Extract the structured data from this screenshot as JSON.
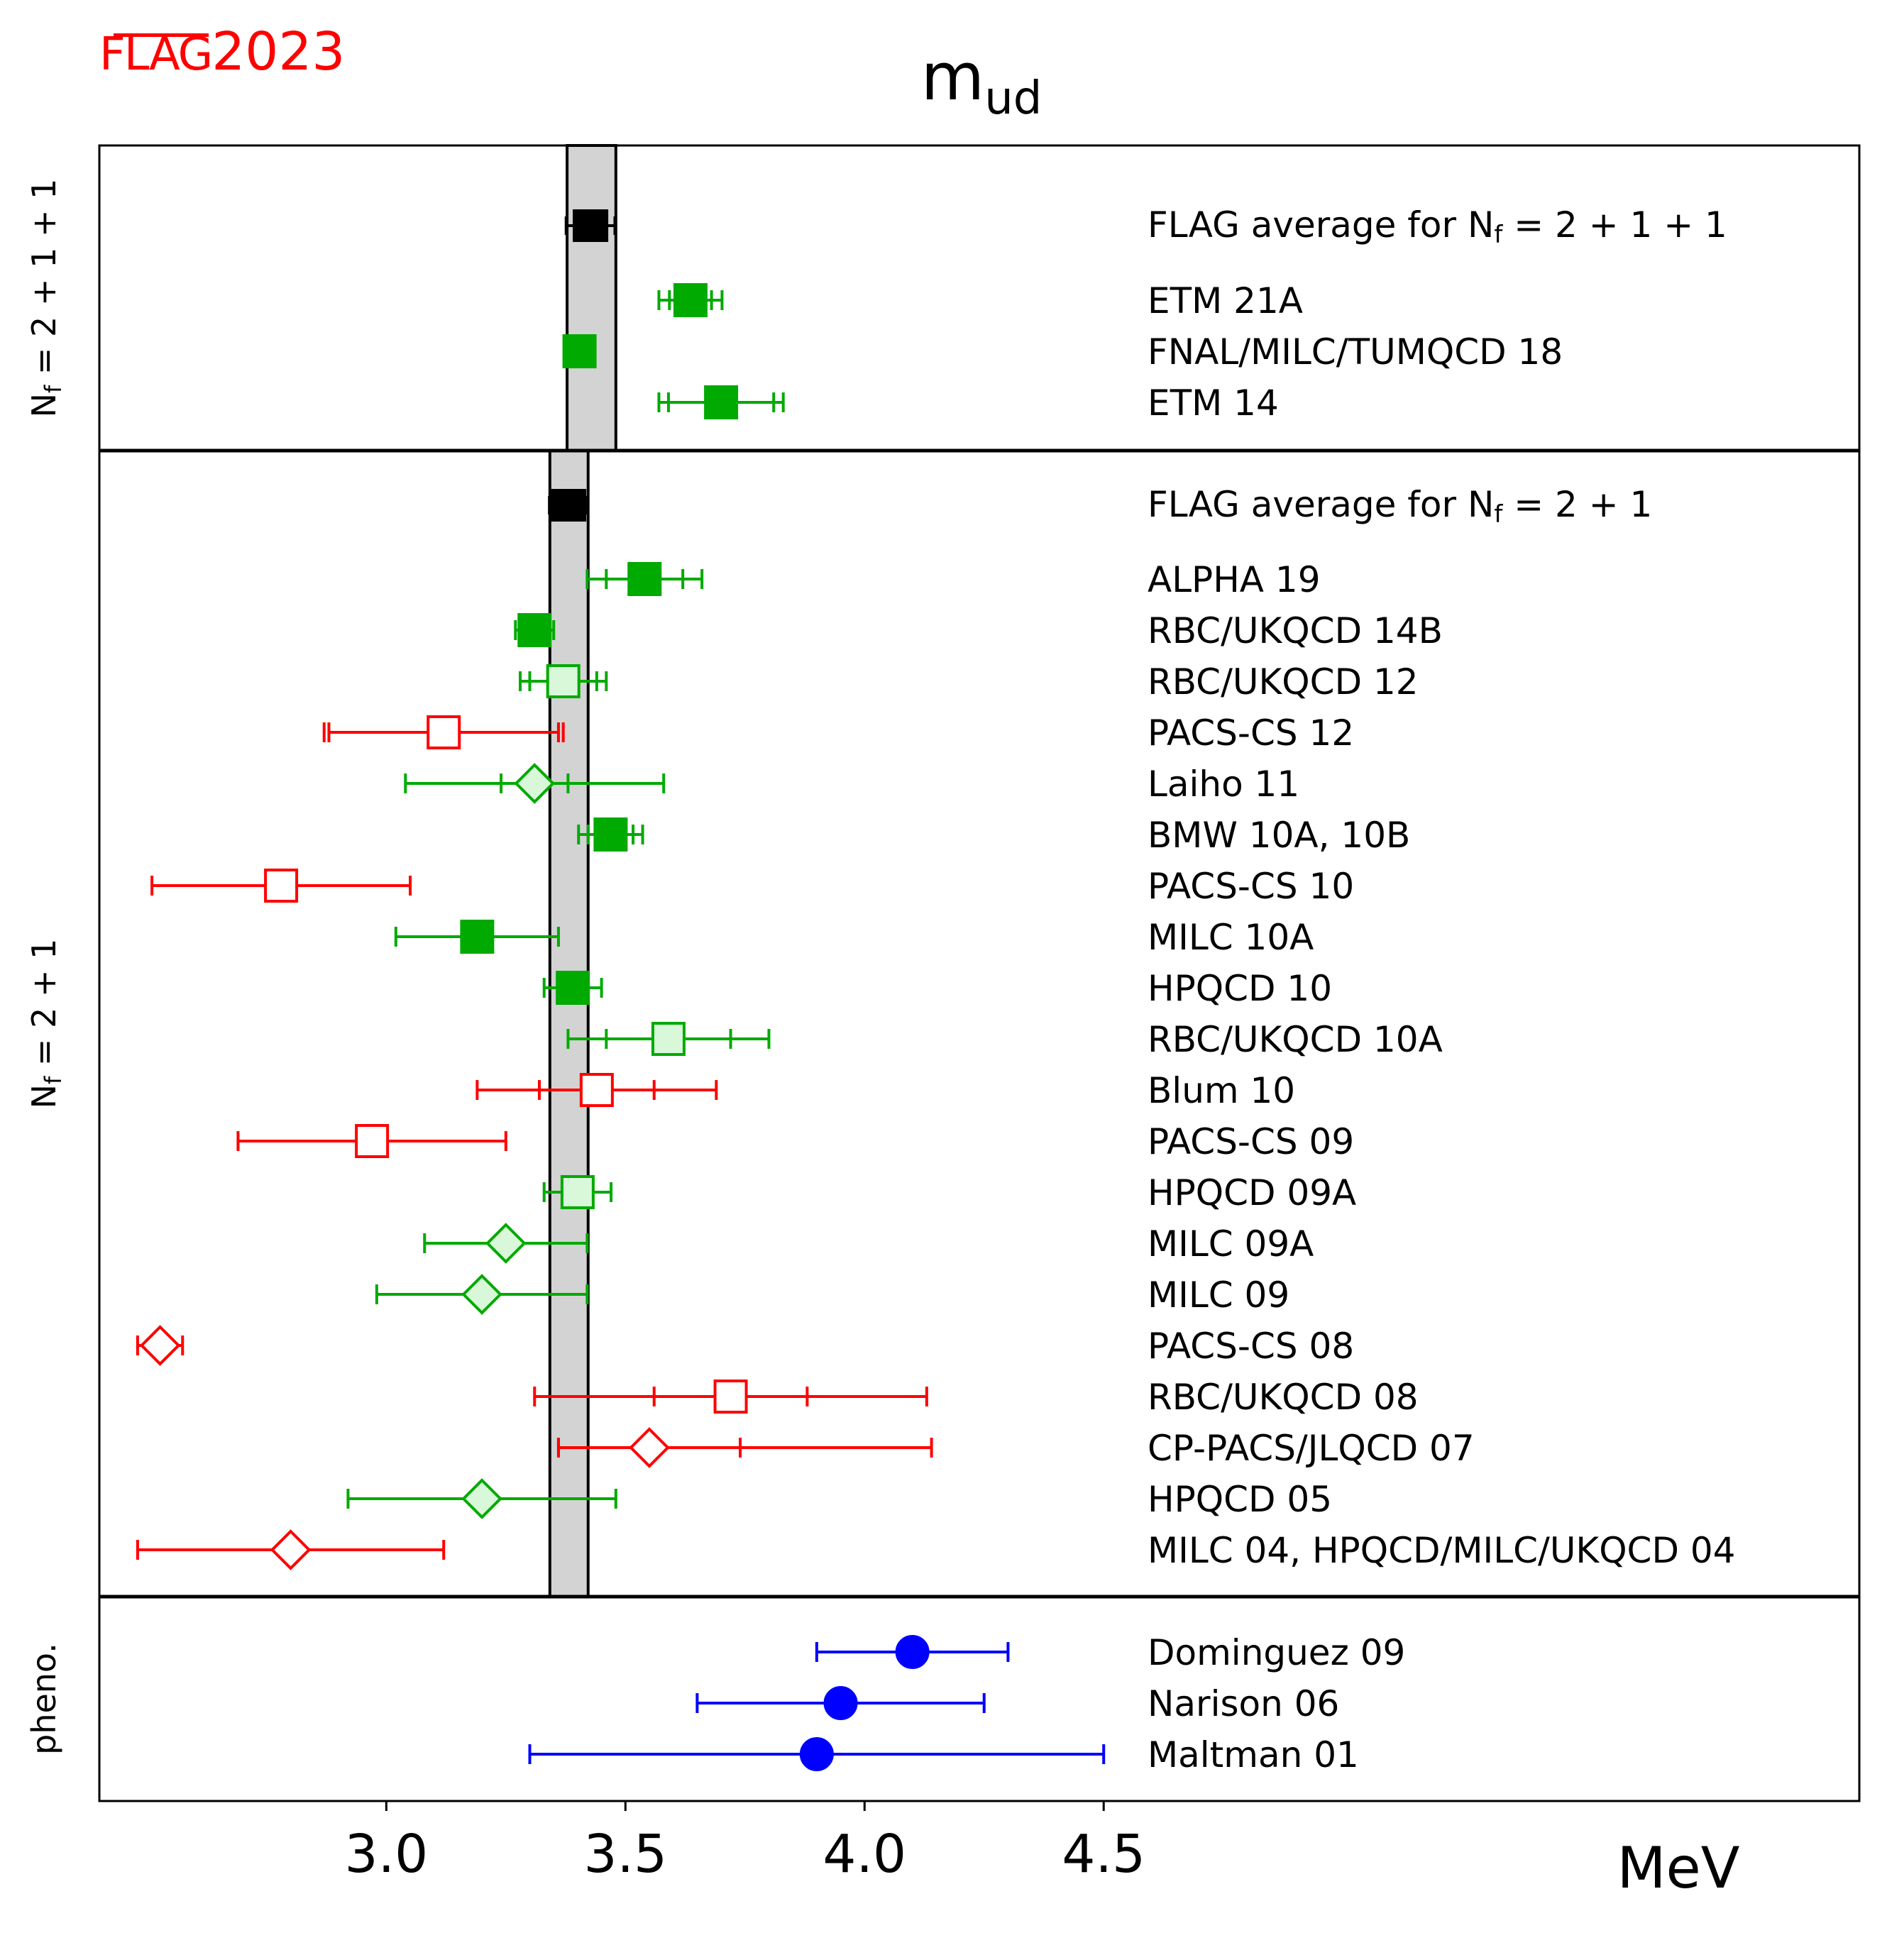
{
  "logo": {
    "word": "FLAG",
    "year": "2023",
    "color": "#ff0000"
  },
  "chart_data": {
    "type": "forest",
    "title_main": "m",
    "title_sub": "ud",
    "xlabel": "MeV",
    "xlim": [
      2.4,
      6.08
    ],
    "xticks": [
      "3.0",
      "3.5",
      "4.0",
      "4.5"
    ],
    "xtick_values": [
      3.0,
      3.5,
      4.0,
      4.5
    ],
    "colors": {
      "black": "#000000",
      "green": "#00aa00",
      "light_green": "#d9f7d9",
      "red": "#ff0000",
      "blue": "#0000ff",
      "band": "#d3d3d3"
    },
    "panels": [
      {
        "label": "N",
        "label_sub": "f",
        "label_rest": " = 2 + 1 + 1",
        "band": [
          3.378,
          3.48
        ],
        "average": {
          "label": "FLAG average for N",
          "label_sub": "f",
          "label_rest": " = 2 + 1 + 1",
          "value": 3.427,
          "err": [
            0.051,
            0.051
          ]
        },
        "points": [
          {
            "label": "ETM 21A",
            "value": 3.636,
            "err_total": [
              0.066,
              0.066
            ],
            "err_stat": [
              0.044,
              0.044
            ],
            "marker": "square",
            "color": "green",
            "fill": "filled"
          },
          {
            "label": "FNAL/MILC/TUMQCD 18",
            "value": 3.404,
            "err_total": [
              0.0,
              0.0
            ],
            "err_stat": [
              0.0,
              0.0
            ],
            "marker": "square",
            "color": "green",
            "fill": "filled"
          },
          {
            "label": "ETM 14",
            "value": 3.7,
            "err_total": [
              0.13,
              0.13
            ],
            "err_stat": [
              0.11,
              0.11
            ],
            "marker": "square",
            "color": "green",
            "fill": "filled"
          }
        ]
      },
      {
        "label": "N",
        "label_sub": "f",
        "label_rest": " = 2 + 1",
        "band": [
          3.342,
          3.422
        ],
        "average": {
          "label": "FLAG average for N",
          "label_sub": "f",
          "label_rest": " = 2 + 1",
          "value": 3.381,
          "err": [
            0.04,
            0.04
          ]
        },
        "points": [
          {
            "label": "ALPHA 19",
            "value": 3.54,
            "err_total": [
              0.12,
              0.12
            ],
            "err_stat": [
              0.08,
              0.08
            ],
            "marker": "square",
            "color": "green",
            "fill": "filled"
          },
          {
            "label": "RBC/UKQCD 14B",
            "value": 3.31,
            "err_total": [
              0.04,
              0.04
            ],
            "err_stat": [
              0.04,
              0.04
            ],
            "marker": "square",
            "color": "green",
            "fill": "filled"
          },
          {
            "label": "RBC/UKQCD 12",
            "value": 3.37,
            "err_total": [
              0.09,
              0.09
            ],
            "err_stat": [
              0.07,
              0.07
            ],
            "marker": "square",
            "color": "green",
            "fill": "light"
          },
          {
            "label": "PACS-CS 12",
            "value": 3.12,
            "err_total": [
              0.24,
              0.24
            ],
            "err_stat": [
              0.25,
              0.25
            ],
            "marker": "square",
            "color": "red",
            "fill": "open"
          },
          {
            "label": "Laiho 11",
            "value": 3.31,
            "err_total": [
              0.27,
              0.27
            ],
            "err_stat": [
              0.07,
              0.07
            ],
            "marker": "diamond",
            "color": "green",
            "fill": "light"
          },
          {
            "label": "BMW 10A, 10B",
            "value": 3.469,
            "err_total": [
              0.067,
              0.067
            ],
            "err_stat": [
              0.047,
              0.047
            ],
            "marker": "square",
            "color": "green",
            "fill": "filled"
          },
          {
            "label": "PACS-CS 10",
            "value": 2.78,
            "err_total": [
              0.27,
              0.27
            ],
            "err_stat": [
              0.27,
              0.27
            ],
            "marker": "square",
            "color": "red",
            "fill": "open"
          },
          {
            "label": "MILC 10A",
            "value": 3.19,
            "err_total": [
              0.17,
              0.17
            ],
            "err_stat": [
              0.0,
              0.0
            ],
            "marker": "square",
            "color": "green",
            "fill": "filled"
          },
          {
            "label": "HPQCD 10",
            "value": 3.39,
            "err_total": [
              0.06,
              0.06
            ],
            "err_stat": [
              0.06,
              0.06
            ],
            "marker": "square",
            "color": "green",
            "fill": "filled"
          },
          {
            "label": "RBC/UKQCD 10A",
            "value": 3.59,
            "err_total": [
              0.21,
              0.21
            ],
            "err_stat": [
              0.13,
              0.13
            ],
            "marker": "square",
            "color": "green",
            "fill": "light"
          },
          {
            "label": "Blum 10",
            "value": 3.44,
            "err_total": [
              0.25,
              0.25
            ],
            "err_stat": [
              0.12,
              0.12
            ],
            "marker": "square",
            "color": "red",
            "fill": "open"
          },
          {
            "label": "PACS-CS 09",
            "value": 2.97,
            "err_total": [
              0.28,
              0.28
            ],
            "err_stat": [
              0.28,
              0.28
            ],
            "marker": "square",
            "color": "red",
            "fill": "open"
          },
          {
            "label": "HPQCD 09A",
            "value": 3.4,
            "err_total": [
              0.07,
              0.07
            ],
            "err_stat": [
              0.07,
              0.07
            ],
            "marker": "square",
            "color": "green",
            "fill": "light"
          },
          {
            "label": "MILC 09A",
            "value": 3.25,
            "err_total": [
              0.17,
              0.17
            ],
            "err_stat": [
              0.17,
              0.17
            ],
            "marker": "diamond",
            "color": "green",
            "fill": "light"
          },
          {
            "label": "MILC 09",
            "value": 3.2,
            "err_total": [
              0.22,
              0.22
            ],
            "err_stat": [
              0.22,
              0.22
            ],
            "marker": "diamond",
            "color": "green",
            "fill": "light"
          },
          {
            "label": "PACS-CS 08",
            "value": 2.527,
            "err_total": [
              0.047,
              0.047
            ],
            "err_stat": [
              0.047,
              0.047
            ],
            "marker": "diamond",
            "color": "red",
            "fill": "open"
          },
          {
            "label": "RBC/UKQCD 08",
            "value": 3.72,
            "err_total": [
              0.41,
              0.41
            ],
            "err_stat": [
              0.16,
              0.16
            ],
            "marker": "square",
            "color": "red",
            "fill": "open"
          },
          {
            "label": "CP-PACS/JLQCD 07",
            "value": 3.55,
            "err_total": [
              0.19,
              0.59
            ],
            "err_stat": [
              0.19,
              0.19
            ],
            "marker": "diamond",
            "color": "red",
            "fill": "open"
          },
          {
            "label": "HPQCD 05",
            "value": 3.2,
            "err_total": [
              0.28,
              0.28
            ],
            "err_stat": [
              0.28,
              0.28
            ],
            "marker": "diamond",
            "color": "green",
            "fill": "light"
          },
          {
            "label": "MILC 04, HPQCD/MILC/UKQCD 04",
            "value": 2.8,
            "err_total": [
              0.32,
              0.32
            ],
            "err_stat": [
              0.32,
              0.32
            ],
            "marker": "diamond",
            "color": "red",
            "fill": "open"
          }
        ]
      },
      {
        "label": "pheno.",
        "label_sub": "",
        "label_rest": "",
        "band": null,
        "average": null,
        "points": [
          {
            "label": "Dominguez 09",
            "value": 4.1,
            "err_total": [
              0.2,
              0.2
            ],
            "err_stat": [
              0.2,
              0.2
            ],
            "marker": "circle",
            "color": "blue",
            "fill": "filled"
          },
          {
            "label": "Narison 06",
            "value": 3.95,
            "err_total": [
              0.3,
              0.3
            ],
            "err_stat": [
              0.3,
              0.3
            ],
            "marker": "circle",
            "color": "blue",
            "fill": "filled"
          },
          {
            "label": "Maltman 01",
            "value": 3.9,
            "err_total": [
              0.6,
              0.6
            ],
            "err_stat": [
              0.6,
              0.6
            ],
            "marker": "circle",
            "color": "blue",
            "fill": "filled"
          }
        ]
      }
    ]
  }
}
